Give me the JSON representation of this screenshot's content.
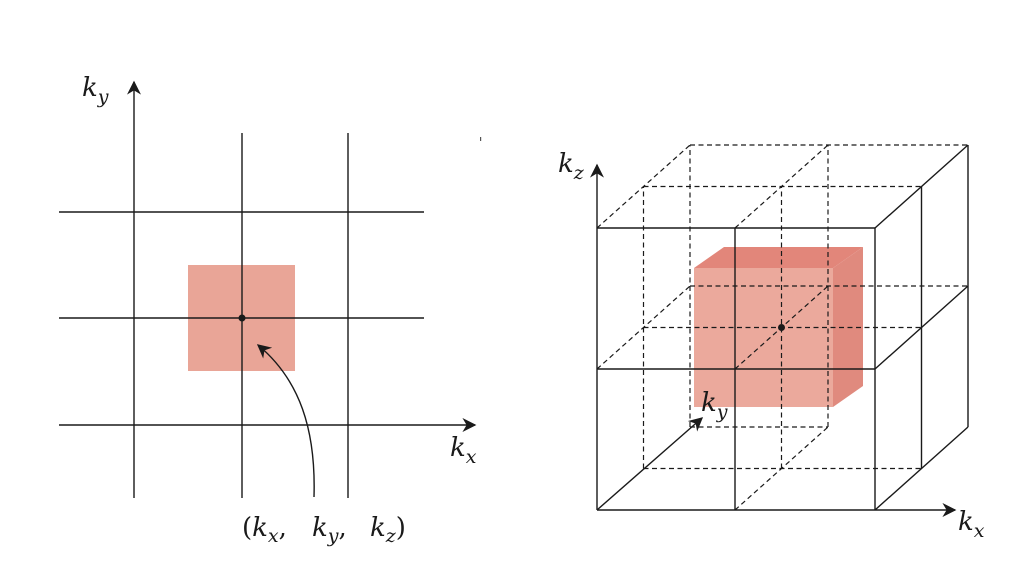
{
  "colors": {
    "cell_fill": "#e9a597",
    "cube_front": "#eba99c",
    "cube_top": "#e2867a",
    "cube_side": "#e08a7e",
    "line": "#1a1a1a"
  },
  "left_diagram": {
    "y_axis": {
      "base": "k",
      "sub": "y"
    },
    "x_axis": {
      "base": "k",
      "sub": "x"
    },
    "point_label": {
      "open": "(",
      "kx": {
        "base": "k",
        "sub": "x",
        "sep": ","
      },
      "ky": {
        "base": "k",
        "sub": "y",
        "sep": ","
      },
      "kz": {
        "base": "k",
        "sub": "z"
      },
      "close": ")"
    }
  },
  "right_diagram": {
    "z_axis": {
      "base": "k",
      "sub": "z"
    },
    "y_axis": {
      "base": "k",
      "sub": "y"
    },
    "x_axis": {
      "base": "k",
      "sub": "x"
    }
  }
}
